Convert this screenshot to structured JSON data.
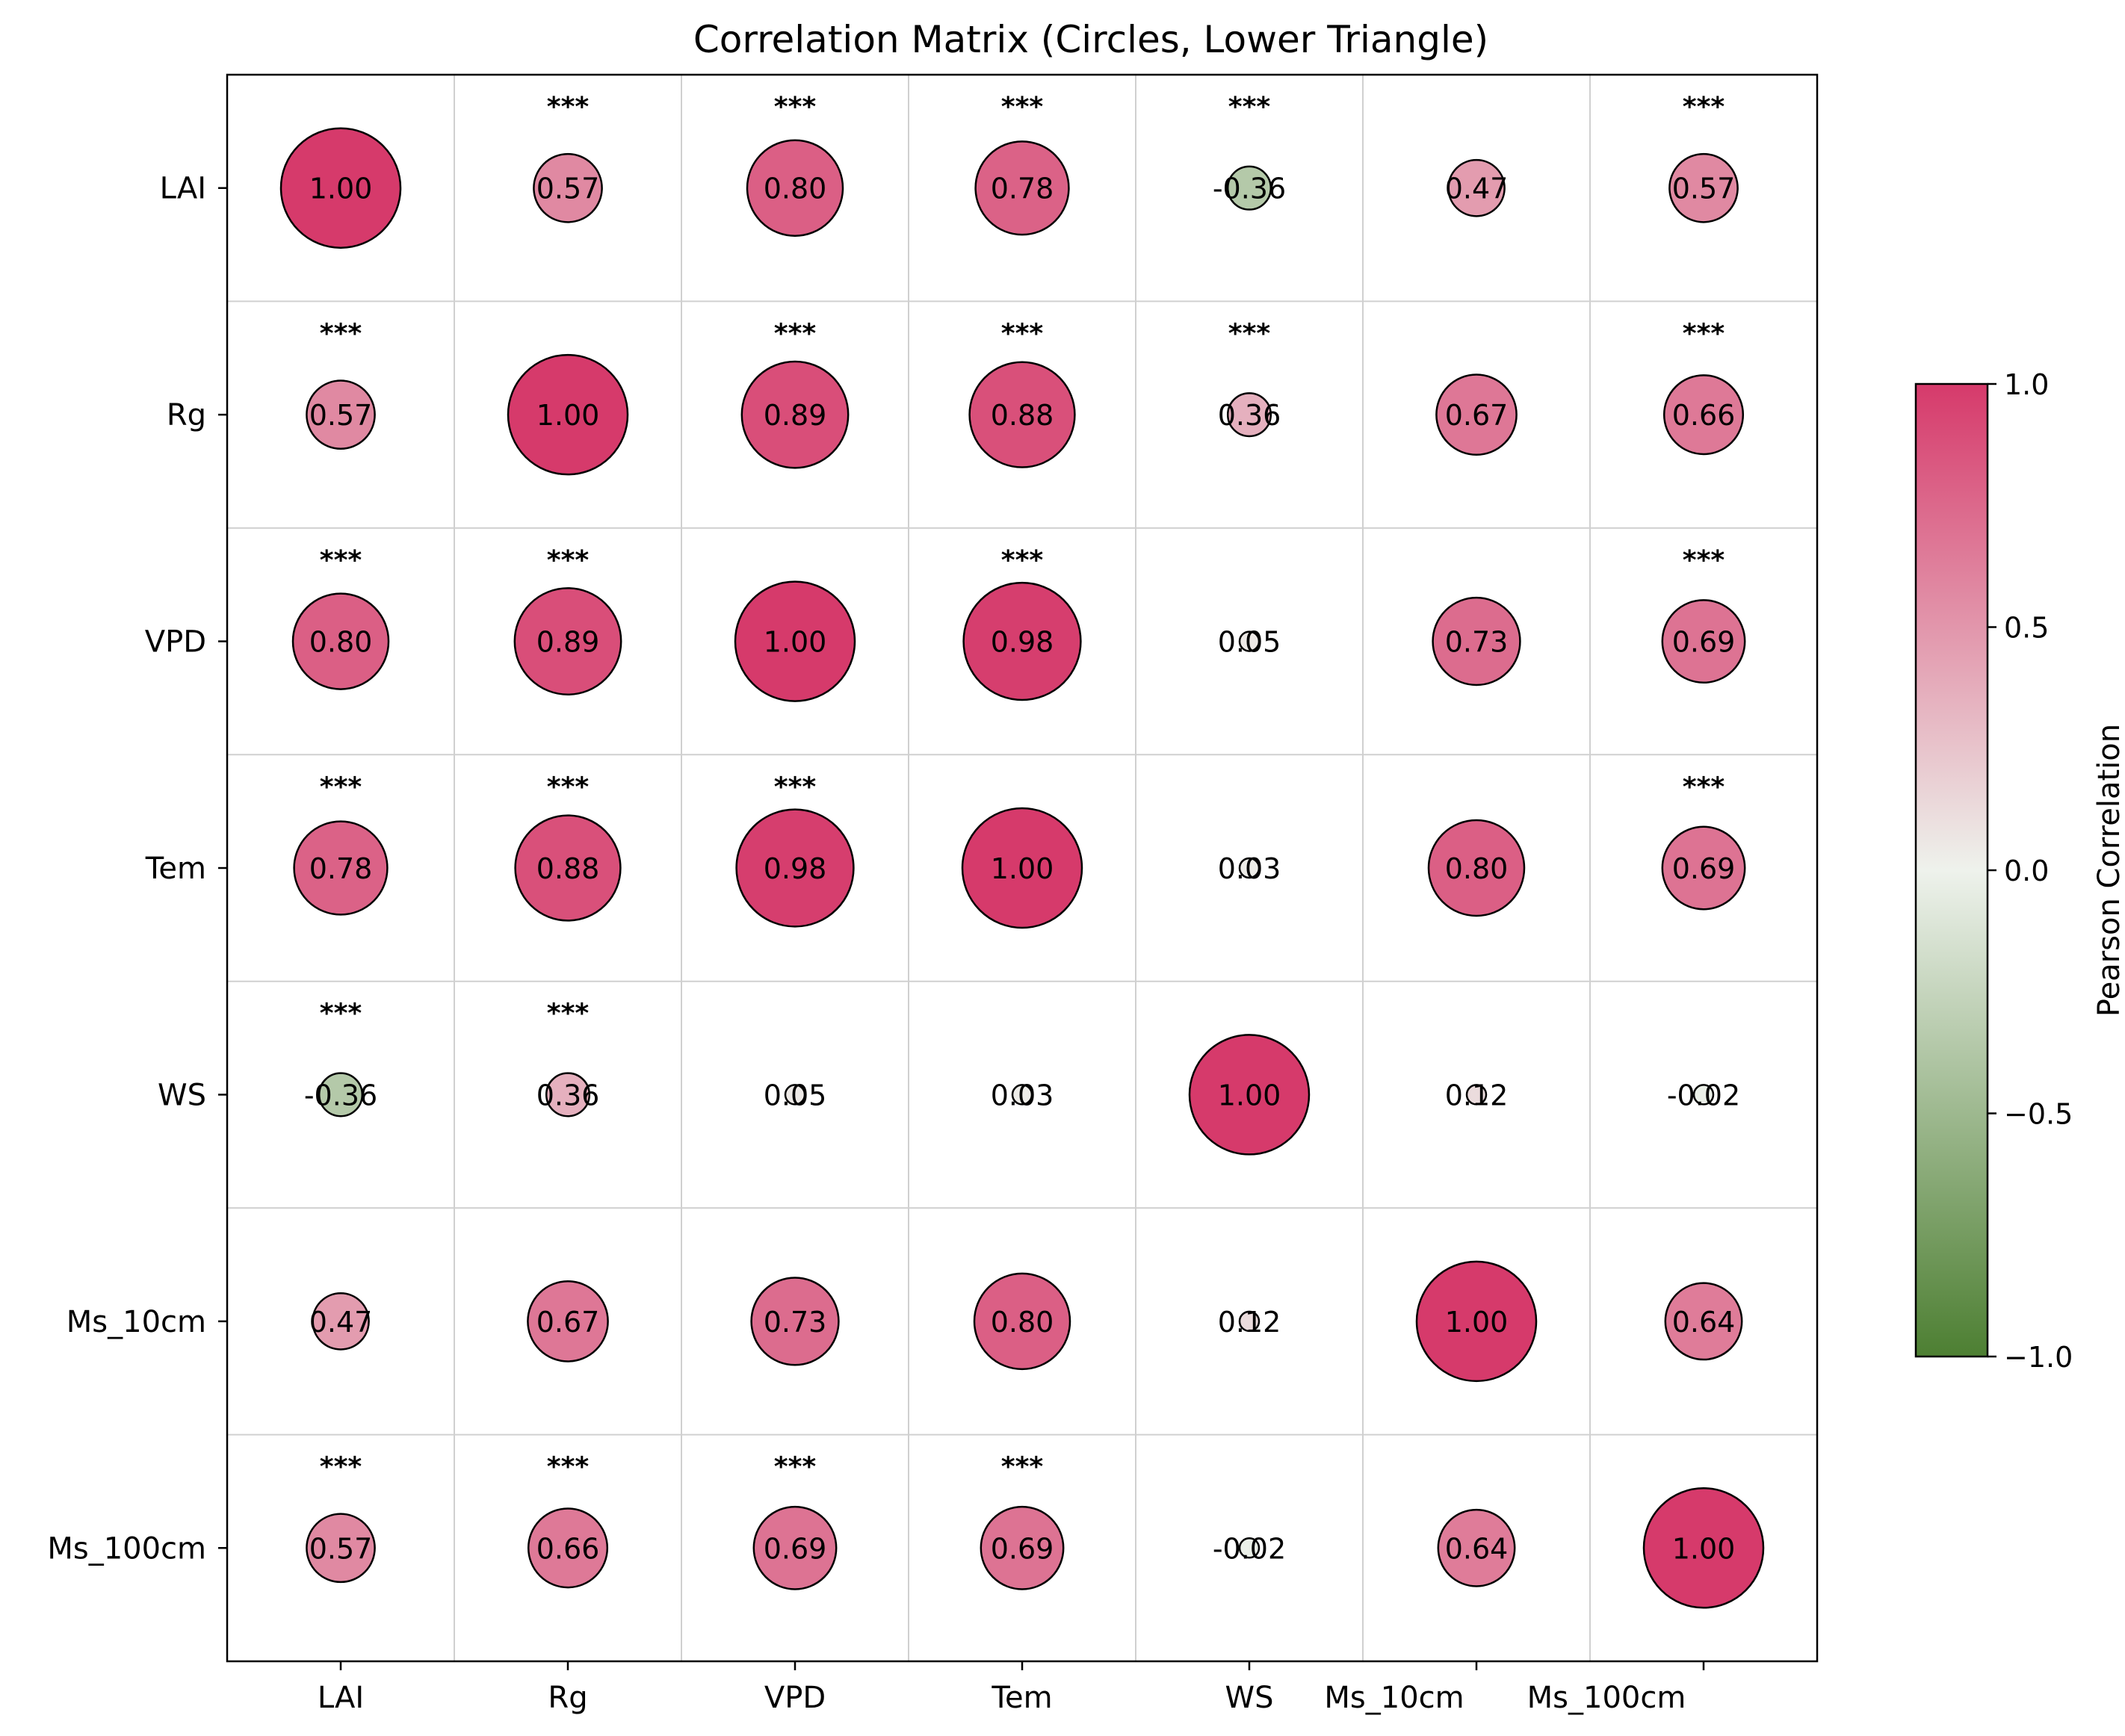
{
  "chart_data": {
    "type": "heatmap",
    "title": "Correlation Matrix (Circles, Lower Triangle)",
    "variables": [
      "LAI",
      "Rg",
      "VPD",
      "Tem",
      "WS",
      "Ms_10cm",
      "Ms_100cm"
    ],
    "matrix": [
      [
        1.0,
        0.57,
        0.8,
        0.78,
        -0.36,
        0.47,
        0.57
      ],
      [
        0.57,
        1.0,
        0.89,
        0.88,
        0.36,
        0.67,
        0.66
      ],
      [
        0.8,
        0.89,
        1.0,
        0.98,
        0.05,
        0.73,
        0.69
      ],
      [
        0.78,
        0.88,
        0.98,
        1.0,
        0.03,
        0.8,
        0.69
      ],
      [
        -0.36,
        0.36,
        0.05,
        0.03,
        1.0,
        0.12,
        -0.02
      ],
      [
        0.47,
        0.67,
        0.73,
        0.8,
        0.12,
        1.0,
        0.64
      ],
      [
        0.57,
        0.66,
        0.69,
        0.69,
        -0.02,
        0.64,
        1.0
      ]
    ],
    "value_labels": [
      [
        "1.00",
        "0.57",
        "0.80",
        "0.78",
        "-0.36",
        "0.47",
        "0.57"
      ],
      [
        "0.57",
        "1.00",
        "0.89",
        "0.88",
        "0.36",
        "0.67",
        "0.66"
      ],
      [
        "0.80",
        "0.89",
        "1.00",
        "0.98",
        "0.05",
        "0.73",
        "0.69"
      ],
      [
        "0.78",
        "0.88",
        "0.98",
        "1.00",
        "0.03",
        "0.80",
        "0.69"
      ],
      [
        "-0.36",
        "0.36",
        "0.05",
        "0.03",
        "1.00",
        "0.12",
        "-0.02"
      ],
      [
        "0.47",
        "0.67",
        "0.73",
        "0.80",
        "0.12",
        "1.00",
        "0.64"
      ],
      [
        "0.57",
        "0.66",
        "0.69",
        "0.69",
        "-0.02",
        "0.64",
        "1.00"
      ]
    ],
    "significance": [
      [
        "",
        "***",
        "***",
        "***",
        "***",
        "",
        "***"
      ],
      [
        "***",
        "",
        "***",
        "***",
        "***",
        "",
        "***"
      ],
      [
        "***",
        "***",
        "",
        "***",
        "",
        "",
        "***"
      ],
      [
        "***",
        "***",
        "***",
        "",
        "",
        "",
        "***"
      ],
      [
        "***",
        "***",
        "",
        "",
        "",
        "",
        ""
      ],
      [
        "",
        "",
        "",
        "",
        "",
        "",
        ""
      ],
      [
        "***",
        "***",
        "***",
        "***",
        "",
        "",
        ""
      ]
    ],
    "colorbar": {
      "label": "Pearson Correlation",
      "range": [
        -1.0,
        1.0
      ],
      "ticks": [
        1.0,
        0.5,
        0.0,
        -0.5,
        -1.0
      ],
      "tick_labels": [
        "1.0",
        "0.5",
        "0.0",
        "−0.5",
        "−1.0"
      ],
      "colors": {
        "low": "#4d7f32",
        "mid": "#eef2ec",
        "high": "#d63a6b"
      }
    },
    "grid": true
  }
}
